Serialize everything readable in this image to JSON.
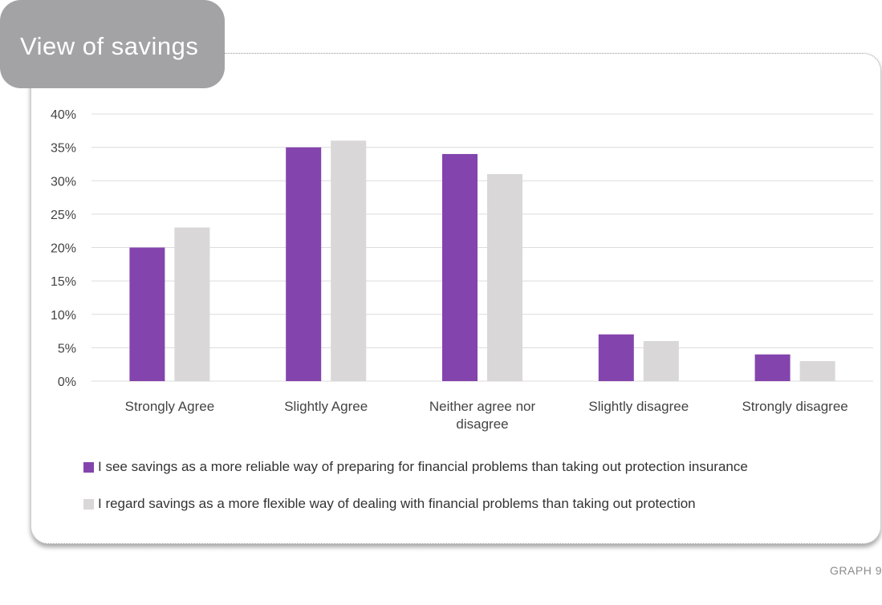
{
  "header": {
    "title": "View of savings"
  },
  "footer": {
    "graph_label": "GRAPH 9"
  },
  "colors": {
    "series_1": "#8444ad",
    "series_2": "#d9d7d8",
    "grid": "#dcdcdc",
    "title_bg": "#a3a3a5"
  },
  "chart_data": {
    "type": "bar",
    "categories": [
      "Strongly Agree",
      "Slightly Agree",
      "Neither agree nor disagree",
      "Slightly disagree",
      "Strongly disagree"
    ],
    "category_lines": [
      [
        "Strongly Agree"
      ],
      [
        "Slightly Agree"
      ],
      [
        "Neither agree nor",
        "disagree"
      ],
      [
        "Slightly disagree"
      ],
      [
        "Strongly disagree"
      ]
    ],
    "series": [
      {
        "name": "I see savings as a more reliable way of preparing for financial problems than taking out protection insurance",
        "values": [
          20,
          35,
          34,
          7,
          4
        ]
      },
      {
        "name": "I regard savings as a more flexible way of dealing with financial problems than taking out protection",
        "values": [
          23,
          36,
          31,
          6,
          3
        ]
      }
    ],
    "y_ticks": [
      "0%",
      "5%",
      "10%",
      "15%",
      "20%",
      "25%",
      "30%",
      "35%",
      "40%"
    ],
    "ylim": [
      0,
      40
    ],
    "grid": true,
    "legend_position": "bottom"
  }
}
